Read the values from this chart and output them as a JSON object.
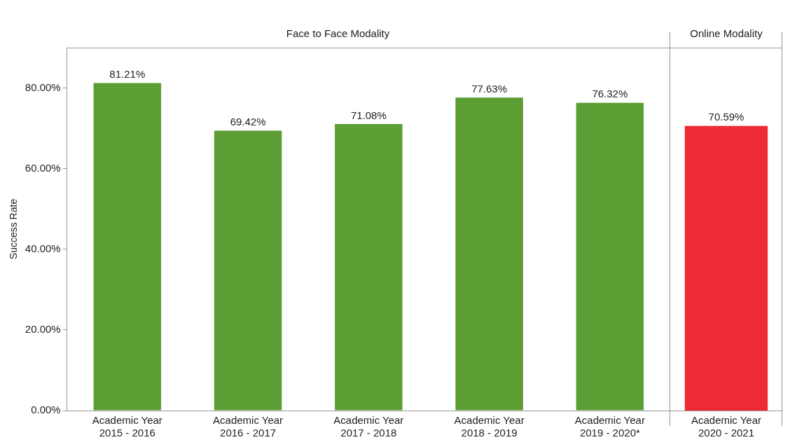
{
  "chart_data": [
    {
      "type": "bar",
      "title": "Face to Face Modality",
      "ylabel": "Success Rate",
      "categories": [
        "Academic Year\n2015 - 2016",
        "Academic Year\n2016 - 2017",
        "Academic Year\n2017 - 2018",
        "Academic Year\n2018 - 2019",
        "Academic Year\n2019 - 2020*"
      ],
      "values": [
        81.21,
        69.42,
        71.08,
        77.63,
        76.32
      ],
      "value_labels": [
        "81.21%",
        "69.42%",
        "71.08%",
        "77.63%",
        "76.32%"
      ],
      "color": "#5c9e34",
      "ylim": [
        0,
        90
      ],
      "yticks": [
        {
          "value": 0,
          "label": "0.00%"
        },
        {
          "value": 20,
          "label": "20.00%"
        },
        {
          "value": 40,
          "label": "40.00%"
        },
        {
          "value": 60,
          "label": "60.00%"
        },
        {
          "value": 80,
          "label": "80.00%"
        }
      ],
      "grid": false,
      "legend": false
    },
    {
      "type": "bar",
      "title": "Online Modality",
      "categories": [
        "Academic Year\n2020 - 2021"
      ],
      "values": [
        70.59
      ],
      "value_labels": [
        "70.59%"
      ],
      "color": "#ee2b35",
      "ylim": [
        0,
        90
      ],
      "grid": false,
      "legend": false,
      "tick_labels": "x"
    }
  ]
}
